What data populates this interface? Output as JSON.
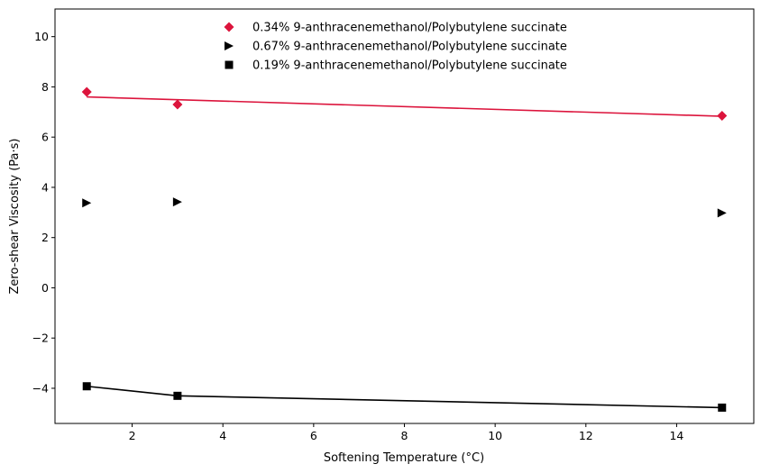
{
  "chart_data": {
    "type": "scatter",
    "xlabel": "Softening Temperature (°C)",
    "ylabel": "Zero-shear Viscosity (Pa·s)",
    "xlim": [
      0.3,
      15.7
    ],
    "ylim": [
      -5.4,
      11.1
    ],
    "xticks": [
      2,
      4,
      6,
      8,
      10,
      12,
      14
    ],
    "yticks": [
      -4,
      -2,
      0,
      2,
      4,
      6,
      8,
      10
    ],
    "grid": false,
    "legend_position": "top-center",
    "series": [
      {
        "name": "0.34% 9-anthracenemethanol/Polybutylene succinate",
        "color": "#dc143c",
        "marker": "diamond",
        "x": [
          1,
          3,
          15
        ],
        "y": [
          7.8,
          7.3,
          6.85
        ],
        "fit_line": {
          "x": [
            1,
            15
          ],
          "y": [
            7.6,
            6.83
          ]
        }
      },
      {
        "name": "0.67% 9-anthracenemethanol/Polybutylene succinate",
        "color": "#000000",
        "marker": "triangle-right",
        "x": [
          1,
          3,
          15
        ],
        "y": [
          3.38,
          3.42,
          2.98
        ]
      },
      {
        "name": "0.19% 9-anthracenemethanol/Polybutylene succinate",
        "color": "#000000",
        "marker": "square",
        "x": [
          1,
          3,
          15
        ],
        "y": [
          -3.92,
          -4.3,
          -4.77
        ],
        "connect_line": true
      }
    ]
  }
}
